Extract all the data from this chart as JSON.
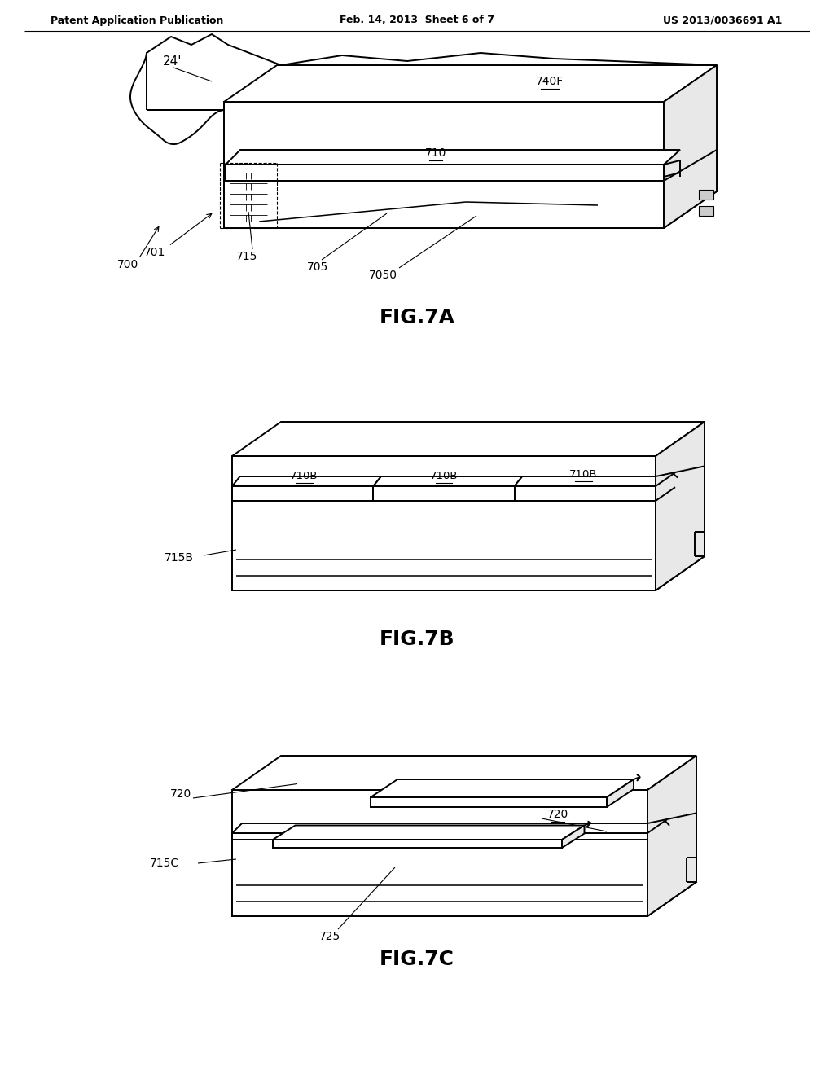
{
  "bg_color": "#ffffff",
  "header_left": "Patent Application Publication",
  "header_center": "Feb. 14, 2013  Sheet 6 of 7",
  "header_right": "US 2013/0036691 A1",
  "fig7a_label": "FIG.7A",
  "fig7b_label": "FIG.7B",
  "fig7c_label": "FIG.7C",
  "line_color": "#000000",
  "line_width": 1.4,
  "text_color": "#000000"
}
